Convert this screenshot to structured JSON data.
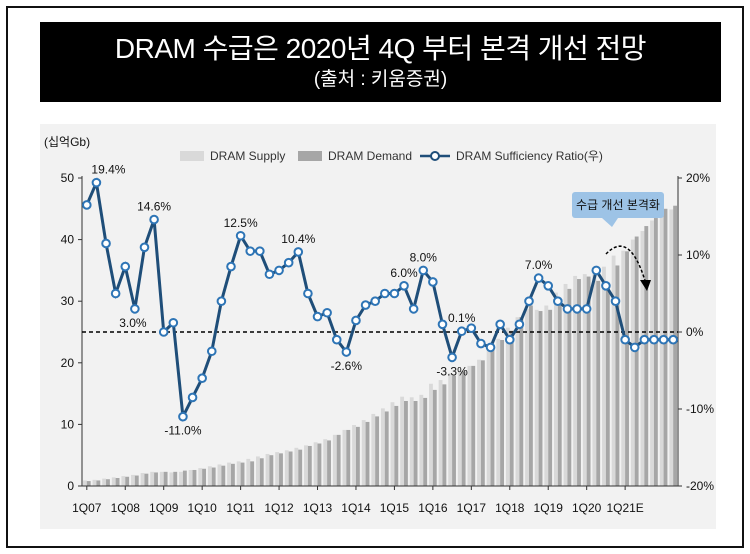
{
  "header": {
    "title": "DRAM 수급은 2020년 4Q 부터 본격 개선 전망",
    "subtitle": "(출처 : 키움증권)"
  },
  "chart_data": {
    "type": "bar",
    "unit_label": "(십억Gb)",
    "legend": [
      {
        "name": "DRAM Supply",
        "color": "#d9d9d9"
      },
      {
        "name": "DRAM Demand",
        "color": "#a6a6a6"
      },
      {
        "name": "DRAM Sufficiency Ratio(우)",
        "color": "#1f4e79"
      }
    ],
    "y_left": {
      "min": 0,
      "max": 50,
      "ticks": [
        "0",
        "10",
        "20",
        "30",
        "40",
        "50"
      ]
    },
    "y_right": {
      "min": -20,
      "max": 20,
      "ticks": [
        "-20%",
        "-10%",
        "0%",
        "10%",
        "20%"
      ]
    },
    "x_ticks": [
      "1Q07",
      "1Q08",
      "1Q09",
      "1Q10",
      "1Q11",
      "1Q12",
      "1Q13",
      "1Q14",
      "1Q15",
      "1Q16",
      "1Q17",
      "1Q18",
      "1Q19",
      "1Q20",
      "1Q21E"
    ],
    "x": [
      "1Q07",
      "2Q07",
      "3Q07",
      "4Q07",
      "1Q08",
      "2Q08",
      "3Q08",
      "4Q08",
      "1Q09",
      "2Q09",
      "3Q09",
      "4Q09",
      "1Q10",
      "2Q10",
      "3Q10",
      "4Q10",
      "1Q11",
      "2Q11",
      "3Q11",
      "4Q11",
      "1Q12",
      "2Q12",
      "3Q12",
      "4Q12",
      "1Q13",
      "2Q13",
      "3Q13",
      "4Q13",
      "1Q14",
      "2Q14",
      "3Q14",
      "4Q14",
      "1Q15",
      "2Q15",
      "3Q15",
      "4Q15",
      "1Q16",
      "2Q16",
      "3Q16",
      "4Q16",
      "1Q17",
      "2Q17",
      "3Q17",
      "4Q17",
      "1Q18",
      "2Q18",
      "3Q18",
      "4Q18",
      "1Q19",
      "2Q19",
      "3Q19",
      "4Q19",
      "1Q20",
      "2Q20",
      "3Q20",
      "4Q20",
      "1Q21E",
      "2Q21E",
      "3Q21E",
      "4Q21E",
      "1Q22E",
      "2Q22E"
    ],
    "series": [
      {
        "name": "DRAM Supply",
        "values": [
          0.9,
          1.0,
          1.2,
          1.4,
          1.6,
          1.8,
          2.1,
          2.3,
          2.3,
          2.2,
          2.3,
          2.6,
          2.9,
          3.2,
          3.5,
          3.8,
          4.0,
          4.4,
          4.8,
          5.2,
          5.5,
          5.8,
          6.2,
          6.6,
          7.1,
          7.6,
          8.3,
          9.1,
          9.9,
          10.7,
          11.7,
          12.6,
          13.6,
          14.5,
          14.4,
          14.8,
          16.6,
          17.2,
          18.3,
          18.7,
          19.5,
          20.5,
          22.0,
          23.9,
          25.7,
          27.4,
          28.7,
          28.6,
          29.3,
          31.4,
          32.8,
          34.1,
          34.4,
          34.4,
          35.6,
          37.4,
          38.2,
          40.0,
          41.4,
          43.1,
          44.5,
          44.9
        ]
      },
      {
        "name": "DRAM Demand",
        "values": [
          0.8,
          0.9,
          1.1,
          1.3,
          1.5,
          1.7,
          2.0,
          2.2,
          2.3,
          2.3,
          2.5,
          2.6,
          2.8,
          3.0,
          3.3,
          3.6,
          3.8,
          4.0,
          4.5,
          5.0,
          5.3,
          5.6,
          5.9,
          6.5,
          6.9,
          7.4,
          8.3,
          9.1,
          9.6,
          10.4,
          11.3,
          12.1,
          13.0,
          13.8,
          13.8,
          14.3,
          15.6,
          16.5,
          17.9,
          18.6,
          19.5,
          20.4,
          22.1,
          23.7,
          25.2,
          27.4,
          29.3,
          28.4,
          28.6,
          30.1,
          32.0,
          33.6,
          34.0,
          33.3,
          33.0,
          35.8,
          38.1,
          40.5,
          42.2,
          43.5,
          45.0,
          45.5
        ]
      },
      {
        "name": "DRAM Sufficiency Ratio(우)",
        "values": [
          16.5,
          19.4,
          11.5,
          5.0,
          8.5,
          3.0,
          11.0,
          14.6,
          0.0,
          1.2,
          -11.0,
          -8.5,
          -6.0,
          -2.5,
          4.0,
          8.5,
          12.5,
          10.5,
          10.5,
          7.5,
          8.0,
          9.0,
          10.4,
          5.0,
          2.0,
          2.5,
          -1.0,
          -2.6,
          1.5,
          3.5,
          4.0,
          5.0,
          5.0,
          6.0,
          3.0,
          8.0,
          6.5,
          1.0,
          -3.3,
          0.1,
          0.5,
          -1.5,
          -2.0,
          1.0,
          -1.0,
          1.0,
          4.0,
          7.0,
          6.0,
          4.0,
          3.0,
          3.0,
          3.0,
          8.0,
          6.0,
          4.0,
          -1.0,
          -2.0,
          -1.0,
          -1.0,
          -1.0,
          -1.0
        ]
      }
    ],
    "data_labels": [
      {
        "index": 1,
        "text": "19.4%"
      },
      {
        "index": 7,
        "text": "14.6%"
      },
      {
        "index": 5,
        "text": "3.0%"
      },
      {
        "index": 10,
        "text": "-11.0%"
      },
      {
        "index": 16,
        "text": "12.5%"
      },
      {
        "index": 22,
        "text": "10.4%"
      },
      {
        "index": 27,
        "text": "-2.6%"
      },
      {
        "index": 33,
        "text": "6.0%"
      },
      {
        "index": 35,
        "text": "8.0%"
      },
      {
        "index": 39,
        "text": "0.1%"
      },
      {
        "index": 38,
        "text": "-3.3%"
      },
      {
        "index": 47,
        "text": "7.0%"
      }
    ],
    "annotation": {
      "text": "수급 개선 본격화",
      "color": "#9dc3e6"
    },
    "reference_line": {
      "axis": "right",
      "value": 0,
      "style": "dashed"
    }
  }
}
